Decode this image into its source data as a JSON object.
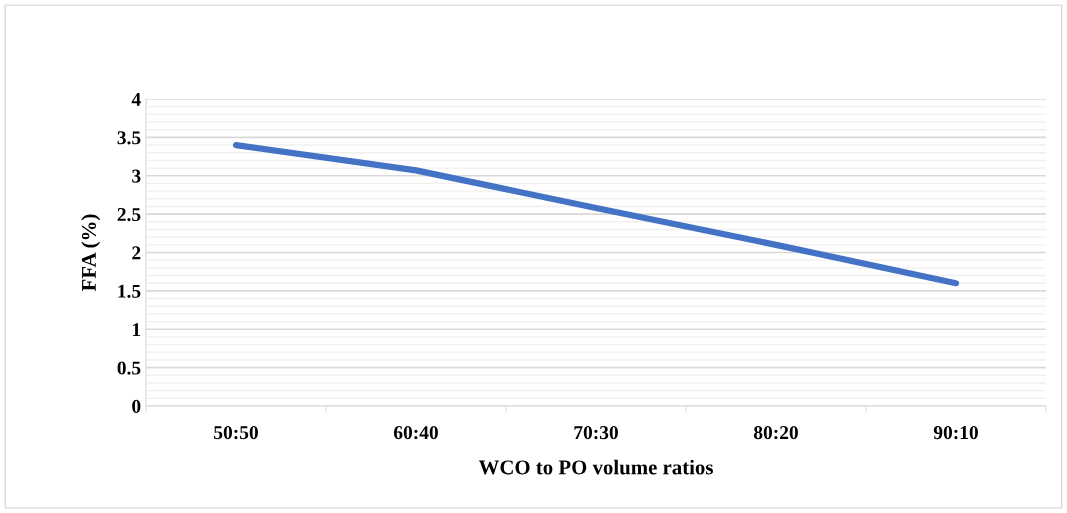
{
  "chart_data": {
    "type": "line",
    "xlabel": "WCO to PO volume ratios",
    "ylabel": "FFA (%)",
    "categories": [
      "50:50",
      "60:40",
      "70:30",
      "80:20",
      "90:10"
    ],
    "series": [
      {
        "color": "#4472c4",
        "values": [
          3.4,
          3.07,
          2.58,
          2.1,
          1.6
        ]
      }
    ],
    "ylim": [
      0,
      4
    ],
    "yticks": [
      0,
      0.5,
      1,
      1.5,
      2,
      2.5,
      3,
      3.5,
      4
    ],
    "grid": "y",
    "marker": "none",
    "line_style": "solid"
  }
}
